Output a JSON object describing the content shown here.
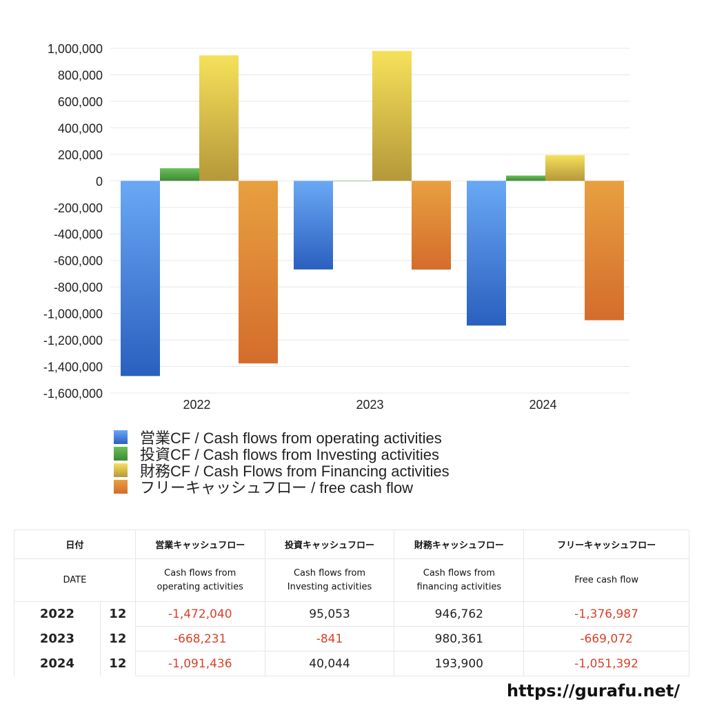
{
  "chart_data": {
    "type": "bar",
    "categories": [
      "2022",
      "2023",
      "2024"
    ],
    "series": [
      {
        "name": "営業CF / Cash flows from operating activities",
        "values": [
          -1472040,
          -668231,
          -1091436
        ],
        "colors": [
          "#6aa8f5",
          "#2a5fbf"
        ]
      },
      {
        "name": "投資CF / Cash flows from Investing activities",
        "values": [
          95053,
          -841,
          40044
        ],
        "colors": [
          "#6cc05a",
          "#3d8a34"
        ]
      },
      {
        "name": "財務CF / Cash Flows from Financing activities",
        "values": [
          946762,
          980361,
          193900
        ],
        "colors": [
          "#f6e15a",
          "#b5983a"
        ]
      },
      {
        "name": "フリーキャッシュフロー / free cash flow",
        "values": [
          -1376987,
          -669072,
          -1051392
        ],
        "colors": [
          "#e8a040",
          "#d46c2c"
        ]
      }
    ],
    "ylim": [
      -1600000,
      1000000
    ],
    "yticks": [
      "1,000,000",
      "800,000",
      "600,000",
      "400,000",
      "200,000",
      "0",
      "-200,000",
      "-400,000",
      "-600,000",
      "-800,000",
      "-1,000,000",
      "-1,200,000",
      "-1,400,000",
      "-1,600,000"
    ],
    "ytick_values": [
      1000000,
      800000,
      600000,
      400000,
      200000,
      0,
      -200000,
      -400000,
      -600000,
      -800000,
      -1000000,
      -1200000,
      -1400000,
      -1600000
    ],
    "grid": true,
    "legend": "bottom-left"
  },
  "table": {
    "header_jp": [
      "日付",
      "営業キャッシュフロー",
      "投資キャッシュフロー",
      "財務キャッシュフロー",
      "フリーキャッシュフロー"
    ],
    "header_en": [
      "DATE",
      "Cash flows from\noperating activities",
      "Cash flows from\nInvesting activities",
      "Cash flows from\nfinancing activities",
      "Free cash flow"
    ],
    "rows": [
      {
        "year": "2022",
        "month": "12",
        "cells": [
          "-1,472,040",
          "95,053",
          "946,762",
          "-1,376,987"
        ]
      },
      {
        "year": "2023",
        "month": "12",
        "cells": [
          "-668,231",
          "-841",
          "980,361",
          "-669,072"
        ]
      },
      {
        "year": "2024",
        "month": "12",
        "cells": [
          "-1,091,436",
          "40,044",
          "193,900",
          "-1,051,392"
        ]
      }
    ]
  },
  "footer": "https://gurafu.net/"
}
